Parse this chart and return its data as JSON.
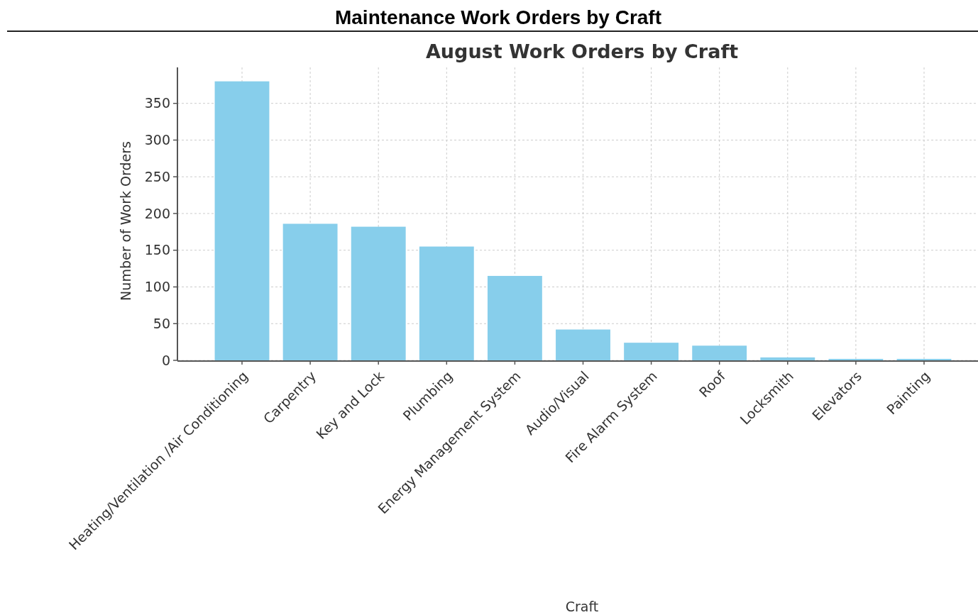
{
  "chart_data": {
    "type": "bar",
    "title": "Maintenance Work Orders by Craft",
    "subtitle": "August Work Orders by Craft",
    "xlabel": "Craft",
    "ylabel": "Number of Work Orders",
    "categories": [
      "Heating/Ventilation /Air Conditioning",
      "Carpentry",
      "Key and Lock",
      "Plumbing",
      "Energy Management System",
      "Audio/Visual",
      "Fire Alarm System",
      "Roof",
      "Locksmith",
      "Elevators",
      "Painting"
    ],
    "values": [
      380,
      186,
      182,
      155,
      115,
      42,
      24,
      20,
      4,
      2,
      2
    ],
    "color": "#87ceeb",
    "ylim": [
      0,
      399
    ],
    "yticks": [
      0,
      50,
      100,
      150,
      200,
      250,
      300,
      350
    ],
    "grid": true
  }
}
